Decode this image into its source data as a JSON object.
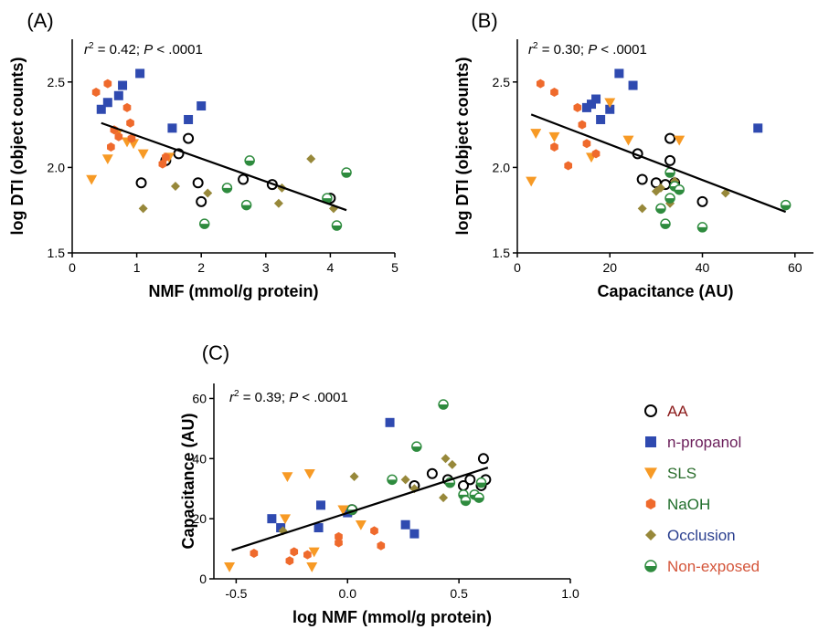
{
  "colors": {
    "AA": "#000000",
    "n-propanol": "#2f4ab0",
    "SLS": "#f79a25",
    "NaOH": "#ef6a2c",
    "Occlusion": "#97883a",
    "Non-exposed": "#2e8b3e",
    "legend_text": {
      "AA": "#8b1a1a",
      "n-propanol": "#6b1e5a",
      "SLS": "#2c6e2e",
      "NaOH": "#1f6d2a",
      "Occlusion": "#2a3f8f",
      "Non-exposed": "#d4553a"
    },
    "fit_line": "#000000"
  },
  "legend": {
    "placement": "right of panel C",
    "items": [
      {
        "group": "AA",
        "label": "AA",
        "marker": "open-circle"
      },
      {
        "group": "n-propanol",
        "label": "n-propanol",
        "marker": "square"
      },
      {
        "group": "SLS",
        "label": "SLS",
        "marker": "down-triangle"
      },
      {
        "group": "NaOH",
        "label": "NaOH",
        "marker": "hexagon"
      },
      {
        "group": "Occlusion",
        "label": "Occlusion",
        "marker": "diamond"
      },
      {
        "group": "Non-exposed",
        "label": "Non-exposed",
        "marker": "half-filled-circle"
      }
    ]
  },
  "chart_data": [
    {
      "type": "scatter",
      "panel": "(A)",
      "title": "",
      "annotation": {
        "r2": "0.42",
        "p": ".0001"
      },
      "xlabel": "NMF (mmol/g protein)",
      "ylabel": "log DTI (object counts)",
      "xlim": [
        0,
        5
      ],
      "ylim": [
        1.5,
        2.75
      ],
      "xticks": [
        "0",
        "1",
        "2",
        "3",
        "4",
        "5"
      ],
      "xtick_values": [
        0,
        1,
        2,
        3,
        4,
        5
      ],
      "yticks": [
        "1.5",
        "2.0",
        "2.5"
      ],
      "ytick_values": [
        1.5,
        2.0,
        2.5
      ],
      "fit_line": [
        [
          0.45,
          2.26
        ],
        [
          4.25,
          1.75
        ]
      ],
      "series": [
        {
          "group": "AA",
          "points": [
            [
              1.07,
              1.91
            ],
            [
              1.45,
              2.04
            ],
            [
              1.65,
              2.08
            ],
            [
              1.8,
              2.17
            ],
            [
              1.95,
              1.91
            ],
            [
              2.0,
              1.8
            ],
            [
              2.65,
              1.93
            ],
            [
              3.1,
              1.9
            ],
            [
              4.0,
              1.82
            ]
          ]
        },
        {
          "group": "n-propanol",
          "points": [
            [
              0.45,
              2.34
            ],
            [
              0.55,
              2.38
            ],
            [
              0.72,
              2.42
            ],
            [
              0.78,
              2.48
            ],
            [
              1.05,
              2.55
            ],
            [
              1.55,
              2.23
            ],
            [
              1.8,
              2.28
            ],
            [
              2.0,
              2.36
            ]
          ]
        },
        {
          "group": "SLS",
          "points": [
            [
              0.3,
              1.93
            ],
            [
              0.55,
              2.05
            ],
            [
              0.7,
              2.2
            ],
            [
              0.85,
              2.15
            ],
            [
              0.95,
              2.14
            ],
            [
              1.1,
              2.08
            ],
            [
              1.5,
              2.06
            ]
          ]
        },
        {
          "group": "NaOH",
          "points": [
            [
              0.37,
              2.44
            ],
            [
              0.55,
              2.49
            ],
            [
              0.6,
              2.12
            ],
            [
              0.65,
              2.22
            ],
            [
              0.72,
              2.18
            ],
            [
              0.85,
              2.35
            ],
            [
              0.9,
              2.26
            ],
            [
              0.92,
              2.17
            ],
            [
              1.4,
              2.02
            ],
            [
              1.45,
              2.06
            ]
          ]
        },
        {
          "group": "Occlusion",
          "points": [
            [
              1.1,
              1.76
            ],
            [
              1.6,
              1.89
            ],
            [
              2.1,
              1.85
            ],
            [
              3.2,
              1.79
            ],
            [
              3.25,
              1.88
            ],
            [
              3.7,
              2.05
            ],
            [
              4.05,
              1.76
            ]
          ]
        },
        {
          "group": "Non-exposed",
          "points": [
            [
              2.05,
              1.67
            ],
            [
              2.4,
              1.88
            ],
            [
              2.7,
              1.78
            ],
            [
              2.75,
              2.04
            ],
            [
              3.95,
              1.82
            ],
            [
              4.1,
              1.66
            ],
            [
              4.25,
              1.97
            ]
          ]
        }
      ]
    },
    {
      "type": "scatter",
      "panel": "(B)",
      "title": "",
      "annotation": {
        "r2": "0.30",
        "p": ".0001"
      },
      "xlabel": "Capacitance (AU)",
      "ylabel": "log DTI (object counts)",
      "xlim": [
        0,
        64
      ],
      "ylim": [
        1.5,
        2.75
      ],
      "xticks": [
        "0",
        "20",
        "40",
        "60"
      ],
      "xtick_values": [
        0,
        20,
        40,
        60
      ],
      "yticks": [
        "1.5",
        "2.0",
        "2.5"
      ],
      "ytick_values": [
        1.5,
        2.0,
        2.5
      ],
      "fit_line": [
        [
          3,
          2.31
        ],
        [
          58,
          1.74
        ]
      ],
      "series": [
        {
          "group": "AA",
          "points": [
            [
              26,
              2.08
            ],
            [
              27,
              1.93
            ],
            [
              30,
              1.91
            ],
            [
              32,
              1.9
            ],
            [
              33,
              2.17
            ],
            [
              33,
              2.04
            ],
            [
              34,
              1.91
            ],
            [
              40,
              1.8
            ]
          ]
        },
        {
          "group": "n-propanol",
          "points": [
            [
              15,
              2.35
            ],
            [
              16,
              2.37
            ],
            [
              17,
              2.4
            ],
            [
              18,
              2.28
            ],
            [
              20,
              2.34
            ],
            [
              22,
              2.55
            ],
            [
              25,
              2.48
            ],
            [
              52,
              2.23
            ]
          ]
        },
        {
          "group": "SLS",
          "points": [
            [
              3,
              1.92
            ],
            [
              4,
              2.2
            ],
            [
              8,
              2.18
            ],
            [
              16,
              2.06
            ],
            [
              20,
              2.38
            ],
            [
              24,
              2.16
            ],
            [
              35,
              2.16
            ]
          ]
        },
        {
          "group": "NaOH",
          "points": [
            [
              5,
              2.49
            ],
            [
              8,
              2.44
            ],
            [
              8,
              2.12
            ],
            [
              11,
              2.01
            ],
            [
              13,
              2.35
            ],
            [
              14,
              2.25
            ],
            [
              15,
              2.14
            ],
            [
              17,
              2.08
            ]
          ]
        },
        {
          "group": "Occlusion",
          "points": [
            [
              27,
              1.76
            ],
            [
              30,
              1.86
            ],
            [
              31,
              1.88
            ],
            [
              33,
              1.79
            ],
            [
              34,
              1.92
            ],
            [
              45,
              1.85
            ]
          ]
        },
        {
          "group": "Non-exposed",
          "points": [
            [
              31,
              1.76
            ],
            [
              32,
              1.67
            ],
            [
              33,
              1.82
            ],
            [
              33,
              1.97
            ],
            [
              34,
              1.89
            ],
            [
              35,
              1.87
            ],
            [
              40,
              1.65
            ],
            [
              58,
              1.78
            ]
          ]
        }
      ]
    },
    {
      "type": "scatter",
      "panel": "(C)",
      "title": "",
      "annotation": {
        "r2": "0.39",
        "p": ".0001"
      },
      "xlabel": "log NMF (mmol/g protein)",
      "ylabel": "Capacitance (AU)",
      "xlim": [
        -0.6,
        1.0
      ],
      "ylim": [
        0,
        65
      ],
      "xticks": [
        "-0.5",
        "0.0",
        "0.5",
        "1.0"
      ],
      "xtick_values": [
        -0.5,
        0.0,
        0.5,
        1.0
      ],
      "yticks": [
        "0",
        "20",
        "40",
        "60"
      ],
      "ytick_values": [
        0,
        20,
        40,
        60
      ],
      "fit_line": [
        [
          -0.52,
          9.5
        ],
        [
          0.63,
          37
        ]
      ],
      "series": [
        {
          "group": "AA",
          "points": [
            [
              0.02,
              23
            ],
            [
              0.3,
              31
            ],
            [
              0.38,
              35
            ],
            [
              0.45,
              33
            ],
            [
              0.52,
              31
            ],
            [
              0.55,
              33
            ],
            [
              0.6,
              31
            ],
            [
              0.61,
              40
            ],
            [
              0.62,
              33
            ]
          ]
        },
        {
          "group": "n-propanol",
          "points": [
            [
              -0.34,
              20
            ],
            [
              -0.3,
              17
            ],
            [
              -0.13,
              17
            ],
            [
              -0.12,
              24.5
            ],
            [
              0.0,
              22
            ],
            [
              0.19,
              52
            ],
            [
              0.26,
              18
            ],
            [
              0.3,
              15
            ]
          ]
        },
        {
          "group": "SLS",
          "points": [
            [
              -0.53,
              4
            ],
            [
              -0.28,
              20
            ],
            [
              -0.27,
              34
            ],
            [
              -0.17,
              35
            ],
            [
              -0.16,
              4
            ],
            [
              -0.15,
              9
            ],
            [
              -0.02,
              23
            ],
            [
              0.06,
              18
            ]
          ]
        },
        {
          "group": "NaOH",
          "points": [
            [
              -0.42,
              8.5
            ],
            [
              -0.26,
              6
            ],
            [
              -0.24,
              9
            ],
            [
              -0.18,
              8
            ],
            [
              -0.04,
              12
            ],
            [
              -0.04,
              14
            ],
            [
              0.12,
              16
            ],
            [
              0.15,
              11
            ]
          ]
        },
        {
          "group": "Occlusion",
          "points": [
            [
              -0.29,
              16
            ],
            [
              0.03,
              34
            ],
            [
              0.26,
              33
            ],
            [
              0.3,
              30
            ],
            [
              0.43,
              27
            ],
            [
              0.44,
              40
            ],
            [
              0.47,
              38
            ]
          ]
        },
        {
          "group": "Non-exposed",
          "points": [
            [
              0.02,
              23
            ],
            [
              0.2,
              33
            ],
            [
              0.31,
              44
            ],
            [
              0.43,
              58
            ],
            [
              0.46,
              32
            ],
            [
              0.52,
              28
            ],
            [
              0.53,
              26
            ],
            [
              0.57,
              28
            ],
            [
              0.59,
              27
            ],
            [
              0.6,
              32
            ]
          ]
        }
      ]
    }
  ]
}
